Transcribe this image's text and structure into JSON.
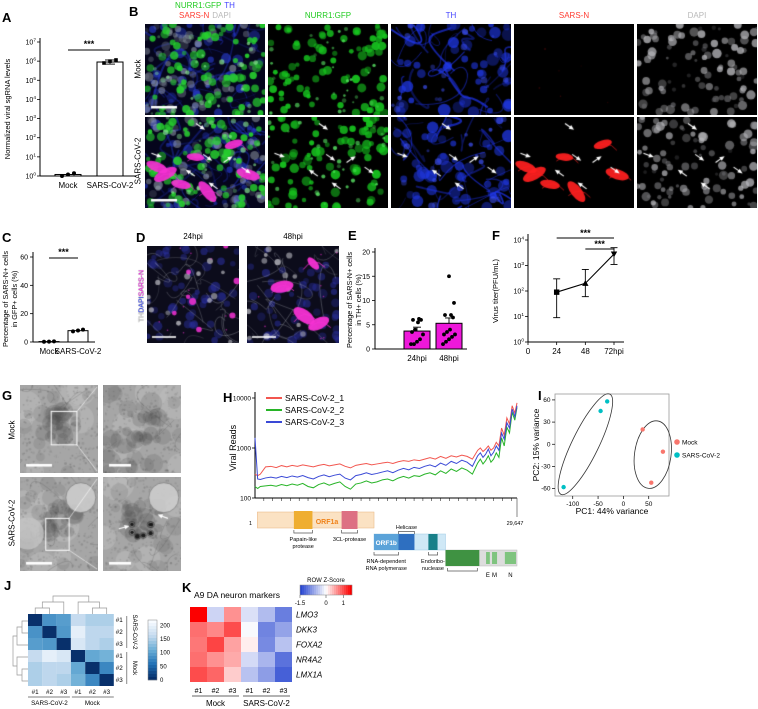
{
  "panels": {
    "A": {
      "letter": "A"
    },
    "B": {
      "letter": "B",
      "row_labels": [
        "Mock",
        "SARS-CoV-2"
      ],
      "merged_header": [
        [
          {
            "text": "NURR1:GFP",
            "color": "#22cc22"
          },
          {
            "text": "TH",
            "color": "#4444ff"
          }
        ],
        [
          {
            "text": "SARS-N",
            "color": "#ff3b30"
          },
          {
            "text": "DAPI",
            "color": "#b9b9b9"
          }
        ]
      ],
      "channel_headers": [
        {
          "text": "NURR1:GFP",
          "color": "#22cc22"
        },
        {
          "text": "TH",
          "color": "#4747ff"
        },
        {
          "text": "SARS-N",
          "color": "#ff3b30"
        },
        {
          "text": "DAPI",
          "color": "#b9b9b9"
        }
      ]
    },
    "C": {
      "letter": "C"
    },
    "D": {
      "letter": "D",
      "titles": [
        "24hpi",
        "48hpi"
      ],
      "side_label": [
        {
          "text": "TH",
          "color": "#e8e8e8"
        },
        {
          "text": "DAPI",
          "color": "#4656ff"
        },
        {
          "text": "SARS-N",
          "color": "#ff35f0"
        }
      ]
    },
    "E": {
      "letter": "E"
    },
    "F": {
      "letter": "F"
    },
    "G": {
      "letter": "G",
      "row_labels": [
        "Mock",
        "SARS-CoV-2"
      ]
    },
    "H": {
      "letter": "H"
    },
    "I": {
      "letter": "I"
    },
    "J": {
      "letter": "J"
    },
    "K": {
      "letter": "K"
    }
  },
  "chart_data": [
    {
      "panel": "A",
      "type": "bar",
      "yscale": "log",
      "ylabel": "Normalized viral sgRNA levels",
      "ylim": [
        1,
        10000000
      ],
      "categories": [
        "Mock",
        "SARS-CoV-2"
      ],
      "values": [
        1.2,
        900000
      ],
      "points": [
        [
          1.0,
          1.2,
          1.4
        ],
        [
          800000,
          1000000,
          1150000
        ]
      ],
      "error": [
        700000,
        1150000
      ],
      "significance": "***"
    },
    {
      "panel": "C",
      "type": "bar",
      "ylabel_lines": [
        "Percentage of SARS-N+ cells",
        "in GFP+ cells (%)"
      ],
      "ylim": [
        0,
        60
      ],
      "yticks": [
        0,
        20,
        40,
        60
      ],
      "categories": [
        "Mock",
        "SARS-CoV-2"
      ],
      "values": [
        0.3,
        8
      ],
      "points": [
        [
          0.2,
          0.3,
          0.4
        ],
        [
          7.5,
          8.1,
          8.7
        ]
      ],
      "significance": "***"
    },
    {
      "panel": "E",
      "type": "bar",
      "bar_color": "#ee18da",
      "ylabel_lines": [
        "Percentage of SARS-N+ cells",
        "in TH+ cells (%)"
      ],
      "ylim": [
        0,
        20
      ],
      "yticks": [
        0,
        5,
        10,
        15,
        20
      ],
      "categories": [
        "24hpi",
        "48hpi"
      ],
      "values": [
        3.7,
        5.3
      ],
      "errors": [
        0.8,
        1.1
      ],
      "points": [
        [
          1,
          1,
          1.5,
          2,
          3,
          3.5,
          4,
          5.5,
          6,
          6,
          6.2
        ],
        [
          1,
          1.5,
          2,
          2.5,
          3,
          3,
          3.5,
          4,
          6.5,
          7,
          7,
          9.5,
          15
        ]
      ]
    },
    {
      "panel": "F",
      "type": "line",
      "yscale": "log",
      "ylabel": "Virus titer(PFU/mL)",
      "ylim": [
        1,
        10000
      ],
      "x": [
        24,
        48,
        72
      ],
      "y": [
        90,
        200,
        2800
      ],
      "err_low": [
        9,
        60,
        1100
      ],
      "err_high": [
        300,
        700,
        5000
      ],
      "xtick_values": [
        0,
        24,
        48,
        72
      ],
      "xtick_labels": [
        "0",
        "24",
        "48",
        "72hpi"
      ],
      "markers": [
        "square",
        "triangle-up",
        "triangle-down"
      ],
      "significance": [
        {
          "x1": 24,
          "x2": 72,
          "label": "***"
        },
        {
          "x1": 48,
          "x2": 72,
          "label": "***"
        }
      ]
    },
    {
      "panel": "H",
      "type": "line",
      "yscale": "log",
      "ylabel": "Viral Reads",
      "ylim": [
        100,
        10000
      ],
      "ytick_labels": [
        "100",
        "1000",
        "10000"
      ],
      "x": [
        0,
        300,
        600,
        1200,
        1800,
        2400,
        3000,
        3600,
        4200,
        4800,
        5400,
        6000,
        6600,
        7200,
        7800,
        8400,
        9000,
        9600,
        10200,
        10800,
        11400,
        12000,
        12600,
        13200,
        13800,
        14400,
        15000,
        15600,
        16200,
        16800,
        17400,
        18000,
        18600,
        19200,
        19800,
        20400,
        21000,
        21600,
        22200,
        22800,
        23400,
        24000,
        24600,
        25200,
        25500,
        25800,
        26100,
        26400,
        26700,
        27000,
        27300,
        27600,
        27900,
        28200,
        28500,
        28800,
        29100,
        29400,
        29647
      ],
      "series": [
        {
          "name": "SARS-CoV-2_1",
          "color": "#f2564f",
          "values": [
            300,
            280,
            300,
            420,
            430,
            405,
            445,
            420,
            450,
            430,
            460,
            440,
            420,
            450,
            470,
            440,
            460,
            480,
            430,
            400,
            450,
            470,
            490,
            460,
            480,
            500,
            520,
            490,
            530,
            560,
            540,
            580,
            560,
            600,
            640,
            600,
            680,
            620,
            700,
            660,
            720,
            680,
            600,
            900,
            1000,
            850,
            950,
            1100,
            900,
            1000,
            1300,
            1100,
            2500,
            1800,
            4000,
            3000,
            7000,
            5000,
            8000
          ]
        },
        {
          "name": "SARS-CoV-2_2",
          "color": "#27b427",
          "values": [
            170,
            155,
            170,
            175,
            180,
            172,
            186,
            176,
            190,
            180,
            196,
            170,
            160,
            186,
            200,
            180,
            196,
            210,
            170,
            150,
            190,
            200,
            220,
            200,
            210,
            230,
            240,
            220,
            250,
            270,
            250,
            280,
            270,
            300,
            320,
            290,
            350,
            310,
            380,
            340,
            400,
            360,
            300,
            500,
            600,
            480,
            560,
            700,
            520,
            600,
            800,
            650,
            1600,
            1100,
            2600,
            2000,
            5200,
            3600,
            6500
          ]
        },
        {
          "name": "SARS-CoV-2_3",
          "color": "#3a49d6",
          "values": [
            1600,
            240,
            235,
            252,
            262,
            250,
            270,
            256,
            276,
            262,
            282,
            256,
            240,
            270,
            290,
            266,
            286,
            300,
            250,
            230,
            280,
            295,
            320,
            295,
            310,
            330,
            350,
            320,
            360,
            390,
            365,
            410,
            390,
            430,
            460,
            420,
            500,
            450,
            540,
            490,
            570,
            520,
            430,
            700,
            800,
            650,
            750,
            950,
            700,
            820,
            1100,
            900,
            2000,
            1500,
            3200,
            2500,
            6000,
            4200,
            7000
          ]
        }
      ],
      "genome": {
        "start_label": "1",
        "end_label": "29,647",
        "length": 29647,
        "orf1a": {
          "label": "ORF1a",
          "from": 266,
          "to": 13468,
          "color": "#fbe2c3",
          "label_color": "#f08219",
          "subdomains": [
            {
              "label_lines": [
                "Papain-like",
                "protease"
              ],
              "from": 4400,
              "to": 6500,
              "color": "#efae31"
            },
            {
              "label_lines": [
                "3CL-protease"
              ],
              "from": 9800,
              "to": 11600,
              "color": "#dd7083"
            }
          ]
        },
        "orf1b": {
          "label": "ORF1b",
          "from": 13468,
          "to": 21555,
          "backdrop_color": "#cfe8f6",
          "rdrp": {
            "label_lines": [
              "RNA-dependent",
              "RNA polymerase"
            ],
            "from": 13468,
            "to": 16236,
            "color": "#5ba3d9"
          },
          "helicase": {
            "label": "Helicase",
            "from": 16236,
            "to": 18043,
            "color": "#2e6fc0"
          },
          "endoribonuclease": {
            "label_lines": [
              "Endoribo-",
              "nuclease"
            ],
            "from": 19620,
            "to": 20658,
            "color": "#188089"
          }
        },
        "structural": {
          "backdrop_color": "#dddddd",
          "s_gene": {
            "from": 21563,
            "to": 25384,
            "color": "#3f9242"
          },
          "gene_color": "#7fc47f",
          "genes": [
            {
              "label": "E",
              "from": 26145,
              "to": 26572
            },
            {
              "label": "M",
              "from": 26823,
              "to": 27391
            },
            {
              "label": "N",
              "from": 28274,
              "to": 29533
            }
          ]
        }
      }
    },
    {
      "panel": "I",
      "type": "scatter",
      "xlabel": "PC1: 44% variance",
      "ylabel": "PC2: 15% variance",
      "xticks": [
        -100,
        -50,
        0,
        50
      ],
      "yticks": [
        -60,
        -30,
        0,
        30,
        60
      ],
      "xlim": [
        -135,
        90
      ],
      "ylim": [
        -70,
        68
      ],
      "groups": [
        {
          "name": "Mock",
          "color": "#f8766d",
          "points": [
            [
              38,
              20
            ],
            [
              78,
              -10
            ],
            [
              55,
              -52
            ]
          ]
        },
        {
          "name": "SARS-CoV-2",
          "color": "#00bfc4",
          "points": [
            [
              -32,
              58
            ],
            [
              -45,
              45
            ],
            [
              -118,
              -58
            ]
          ]
        }
      ],
      "ellipses": [
        {
          "cx": -75,
          "cy": 0,
          "rx": 110,
          "ry": 18,
          "rotate": -64
        },
        {
          "cx": 58,
          "cy": -14,
          "rx": 36,
          "ry": 46,
          "rotate": 8
        }
      ]
    },
    {
      "panel": "J",
      "type": "heatmap",
      "matrix": [
        [
          0,
          85,
          95,
          165,
          150,
          150
        ],
        [
          85,
          0,
          90,
          200,
          160,
          160
        ],
        [
          95,
          90,
          0,
          185,
          160,
          150
        ],
        [
          165,
          200,
          185,
          0,
          105,
          115
        ],
        [
          150,
          160,
          160,
          105,
          0,
          75
        ],
        [
          150,
          160,
          150,
          115,
          75,
          0
        ]
      ],
      "row_labels": [
        "#1",
        "#2",
        "#3",
        "#1",
        "#2",
        "#3"
      ],
      "col_labels": [
        "#1",
        "#2",
        "#3",
        "#1",
        "#2",
        "#3"
      ],
      "row_groups": [
        "SARS-CoV-2",
        "Mock"
      ],
      "col_groups": [
        "SARS-CoV-2",
        "Mock"
      ],
      "colorbar_ticks": [
        200,
        150,
        100,
        50,
        0
      ],
      "domain": [
        0,
        220
      ],
      "colors": {
        "low": "#08306b",
        "high": "#f7fbff"
      }
    },
    {
      "panel": "K",
      "type": "heatmap",
      "title": "A9 DA neuron markers",
      "scale_title": "ROW Z-Score",
      "scale_ticks": [
        "-1.5",
        "0",
        "1"
      ],
      "domain": [
        -1.5,
        1.5
      ],
      "genes": [
        "LMO3",
        "DKK3",
        "FOXA2",
        "NR4A2",
        "LMX1A"
      ],
      "col_labels": [
        "#1",
        "#2",
        "#3",
        "#1",
        "#2",
        "#3"
      ],
      "col_groups": [
        "Mock",
        "SARS-CoV-2"
      ],
      "zscores": [
        [
          1.5,
          -0.35,
          0.65,
          -0.25,
          -0.55,
          -1.05
        ],
        [
          0.85,
          0.7,
          1.05,
          -0.05,
          -1.0,
          -0.75
        ],
        [
          0.8,
          1.1,
          0.55,
          0.1,
          -0.95,
          -0.5
        ],
        [
          0.85,
          0.65,
          0.5,
          -0.3,
          -0.6,
          -1.15
        ],
        [
          1.05,
          0.9,
          0.3,
          -0.5,
          -0.8,
          -1.3
        ]
      ]
    }
  ]
}
